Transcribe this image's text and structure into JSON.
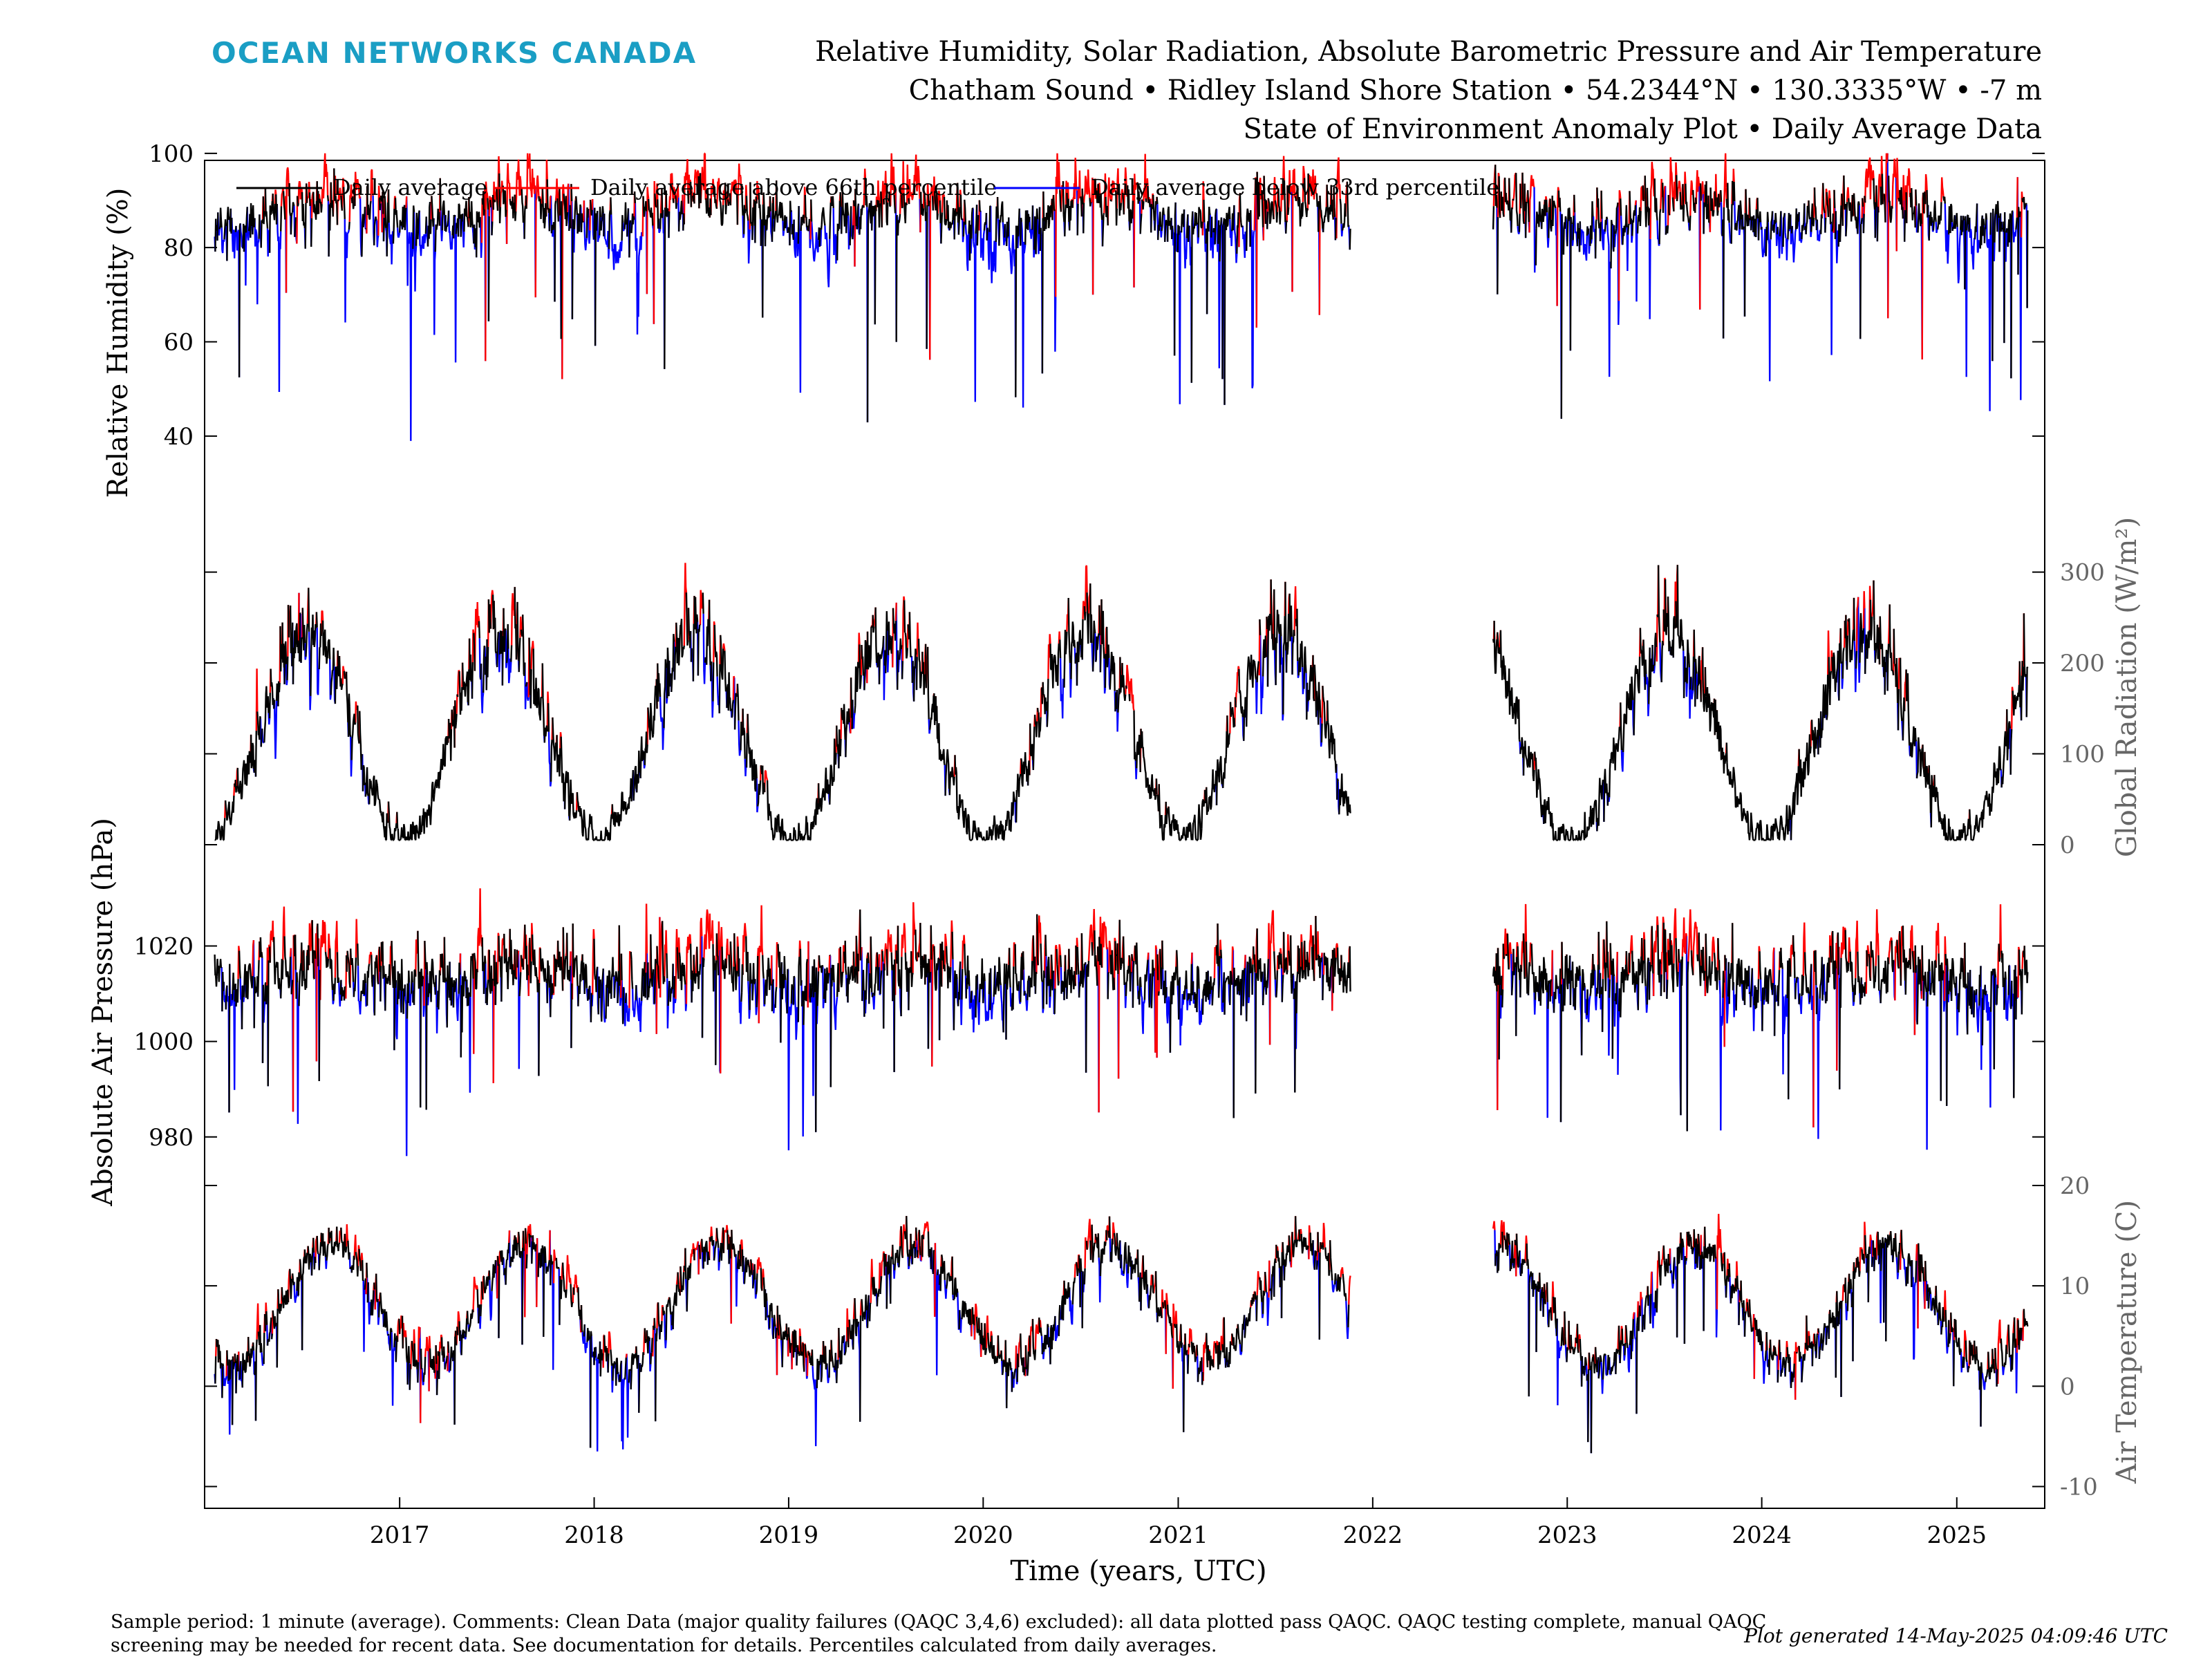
{
  "header": {
    "logo": "OCEAN NETWORKS CANADA",
    "title_lines": [
      "Relative Humidity, Solar Radiation, Absolute Barometric Pressure and Air Temperature",
      "Chatham Sound • Ridley Island Shore Station • 54.2344°N • 130.3335°W • -7 m",
      "State of Environment Anomaly Plot • Daily Average Data"
    ]
  },
  "legend": {
    "items": [
      {
        "label": "Daily average",
        "color": "#000000"
      },
      {
        "label": "Daily average above 66th percentile",
        "color": "#ff0000"
      },
      {
        "label": "Daily average below 33rd percentile",
        "color": "#0000ff"
      }
    ]
  },
  "footer": {
    "text": "Sample period: 1 minute (average). Comments: Clean Data (major quality failures (QAQC 3,4,6) excluded): all data plotted pass QAQC. QAQC testing complete, manual QAQC screening may be needed for recent data. See documentation for details. Percentiles calculated from daily averages.",
    "generated": "Plot generated 14-May-2025 04:09:46 UTC"
  },
  "chart_data": {
    "type": "line",
    "xlabel": "Time (years, UTC)",
    "x_ticks": [
      "2017",
      "2018",
      "2019",
      "2020",
      "2021",
      "2022",
      "2023",
      "2024",
      "2025"
    ],
    "x_range": [
      "2016-01-01",
      "2025-06-15"
    ],
    "data_range": [
      "2016-01-20",
      "2025-05-14"
    ],
    "data_gap": [
      "2021-11-20",
      "2022-08-15"
    ],
    "colors": {
      "average": "#000000",
      "above": "#ff0000",
      "below": "#0000ff",
      "right_axis": "#666666"
    },
    "panels": [
      {
        "name": "Relative Humidity",
        "ylabel": "Relative Humidity (%)",
        "axis_side": "left",
        "ylim": [
          24,
          112
        ],
        "ticks": [
          40,
          60,
          80,
          100
        ],
        "seasonal_model": {
          "mean": 87,
          "amplitude": 4,
          "peak_month": 7.5,
          "noise": 7,
          "dips": 12,
          "min": 27,
          "max": 100
        },
        "p66": 90,
        "p33": 84
      },
      {
        "name": "Global Radiation",
        "ylabel": "Global Radiation (W/m²)",
        "axis_side": "right",
        "ylim": [
          0,
          340
        ],
        "ticks": [
          0,
          100,
          200,
          300
        ],
        "seasonal_model": {
          "mean": 120,
          "amplitude": 115,
          "peak_month": 6.3,
          "noise": 55,
          "dips": 0,
          "min": 5,
          "max": 335
        },
        "p66": "seasonal_upper",
        "p33": "seasonal_lower"
      },
      {
        "name": "Absolute Air Pressure",
        "ylabel": "Absolute Air Pressure (hPa)",
        "axis_side": "left",
        "ylim": [
          972,
          1036
        ],
        "ticks": [
          980,
          1000,
          1020
        ],
        "seasonal_model": {
          "mean": 1014,
          "amplitude": 3,
          "peak_month": 7.0,
          "noise": 8,
          "dips": 10,
          "min": 976,
          "max": 1035
        },
        "p66": 1018,
        "p33": 1010
      },
      {
        "name": "Air Temperature",
        "ylabel": "Air Temperature (C)",
        "axis_side": "right",
        "ylim": [
          -11,
          20
        ],
        "ticks": [
          -10,
          0,
          10,
          20
        ],
        "seasonal_model": {
          "mean": 8,
          "amplitude": 6,
          "peak_month": 7.8,
          "noise": 2.5,
          "dips": 3,
          "min": -10,
          "max": 19
        },
        "p66": "seasonal_upper",
        "p33": "seasonal_lower"
      }
    ]
  }
}
